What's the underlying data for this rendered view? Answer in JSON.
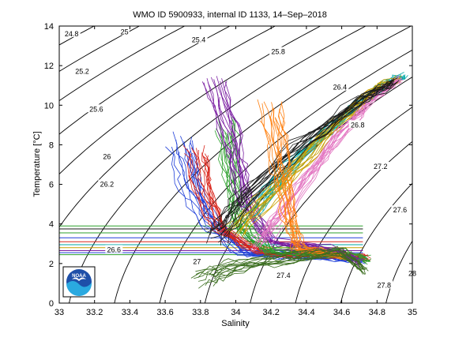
{
  "chart_data": {
    "type": "line",
    "title": "WMO ID 5900933, internal ID 1133, 14–Sep–2018",
    "xlabel": "Salinity",
    "ylabel": "Temperature [°C]",
    "xlim": [
      33,
      35
    ],
    "ylim": [
      0,
      14
    ],
    "x_ticks": [
      33,
      33.2,
      33.4,
      33.6,
      33.8,
      34,
      34.2,
      34.4,
      34.6,
      34.8,
      35
    ],
    "x_tick_labels": [
      "33",
      "33.2",
      "33.4",
      "33.6",
      "33.8",
      "34",
      "34.2",
      "34.4",
      "34.6",
      "34.8",
      "35"
    ],
    "y_ticks": [
      0,
      2,
      4,
      6,
      8,
      10,
      12,
      14
    ],
    "y_tick_labels": [
      "0",
      "2",
      "4",
      "6",
      "8",
      "10",
      "12",
      "14"
    ],
    "grid": false,
    "density_contours": {
      "levels": [
        24.8,
        25,
        25.2,
        25.4,
        25.6,
        25.8,
        26,
        26.2,
        26.4,
        26.6,
        26.8,
        27,
        27.2,
        27.4,
        27.6,
        27.8,
        28
      ],
      "labels": [
        {
          "text": "24.8",
          "s": 33.07,
          "t": 13.6
        },
        {
          "text": "25",
          "s": 33.37,
          "t": 13.7
        },
        {
          "text": "25.4",
          "s": 33.79,
          "t": 13.3
        },
        {
          "text": "25.8",
          "s": 34.24,
          "t": 12.7
        },
        {
          "text": "25.2",
          "s": 33.13,
          "t": 11.7
        },
        {
          "text": "26.4",
          "s": 34.59,
          "t": 10.9
        },
        {
          "text": "25.6",
          "s": 33.21,
          "t": 9.8
        },
        {
          "text": "26.8",
          "s": 34.69,
          "t": 9.0
        },
        {
          "text": "26",
          "s": 33.27,
          "t": 7.4
        },
        {
          "text": "27.2",
          "s": 34.82,
          "t": 6.9
        },
        {
          "text": "26.2",
          "s": 33.27,
          "t": 6.0
        },
        {
          "text": "27.6",
          "s": 34.93,
          "t": 4.7
        },
        {
          "text": "26.6",
          "s": 33.31,
          "t": 2.7
        },
        {
          "text": "27",
          "s": 33.78,
          "t": 2.1
        },
        {
          "text": "27.4",
          "s": 34.27,
          "t": 1.4
        },
        {
          "text": "28",
          "s": 35.0,
          "t": 1.5
        },
        {
          "text": "27.8",
          "s": 34.84,
          "t": 0.9
        }
      ]
    },
    "profile_families": [
      {
        "color": "#1f3fd9",
        "points": [
          [
            33.68,
            8.2
          ],
          [
            33.74,
            6.0
          ],
          [
            33.84,
            4.2
          ],
          [
            34.05,
            2.6
          ],
          [
            34.45,
            2.4
          ],
          [
            34.72,
            2.2
          ]
        ]
      },
      {
        "color": "#d9261c",
        "points": [
          [
            33.78,
            7.6
          ],
          [
            33.82,
            5.5
          ],
          [
            33.92,
            3.6
          ],
          [
            34.15,
            2.5
          ],
          [
            34.55,
            2.4
          ],
          [
            34.74,
            2.3
          ]
        ]
      },
      {
        "color": "#2ca02c",
        "points": [
          [
            33.95,
            9.0
          ],
          [
            33.98,
            6.5
          ],
          [
            34.02,
            4.0
          ],
          [
            34.18,
            2.7
          ],
          [
            34.6,
            2.5
          ],
          [
            34.75,
            2.2
          ]
        ]
      },
      {
        "color": "#7b1fa2",
        "points": [
          [
            33.88,
            11.0
          ],
          [
            33.98,
            8.0
          ],
          [
            34.05,
            5.0
          ],
          [
            34.2,
            3.0
          ],
          [
            34.58,
            2.6
          ],
          [
            34.7,
            2.0
          ]
        ]
      },
      {
        "color": "#00a6a6",
        "points": [
          [
            34.1,
            4.6
          ],
          [
            34.3,
            6.8
          ],
          [
            34.6,
            9.4
          ],
          [
            34.85,
            11.0
          ],
          [
            34.95,
            11.5
          ]
        ]
      },
      {
        "color": "#c9a000",
        "points": [
          [
            34.0,
            3.8
          ],
          [
            34.25,
            6.2
          ],
          [
            34.55,
            9.0
          ],
          [
            34.78,
            10.8
          ],
          [
            34.92,
            11.4
          ]
        ]
      },
      {
        "color": "#e377c2",
        "points": [
          [
            34.15,
            3.1
          ],
          [
            34.35,
            5.6
          ],
          [
            34.6,
            8.6
          ],
          [
            34.8,
            10.5
          ],
          [
            34.93,
            11.3
          ]
        ]
      },
      {
        "color": "#1a1a1a",
        "points": [
          [
            33.9,
            3.4
          ],
          [
            34.05,
            5.2
          ],
          [
            34.35,
            7.8
          ],
          [
            34.7,
            10.2
          ],
          [
            34.9,
            11.2
          ]
        ]
      },
      {
        "color": "#ff7f0e",
        "points": [
          [
            34.2,
            9.8
          ],
          [
            34.25,
            7.0
          ],
          [
            34.3,
            4.5
          ],
          [
            34.35,
            2.8
          ],
          [
            34.6,
            2.3
          ]
        ]
      },
      {
        "color": "#3b6e1f",
        "points": [
          [
            33.83,
            1.2
          ],
          [
            34.0,
            1.8
          ],
          [
            34.3,
            2.2
          ],
          [
            34.6,
            2.6
          ],
          [
            34.73,
            1.6
          ]
        ]
      }
    ],
    "horizontal_lines": [
      {
        "t": 2.45,
        "s_from": 33,
        "s_to": 34.72,
        "color": "#2ca02c"
      },
      {
        "t": 2.55,
        "s_from": 33,
        "s_to": 34.72,
        "color": "#1f3fd9"
      },
      {
        "t": 2.65,
        "s_from": 33,
        "s_to": 34.72,
        "color": "#7b1fa2"
      },
      {
        "t": 2.8,
        "s_from": 33,
        "s_to": 34.72,
        "color": "#c9a000"
      },
      {
        "t": 2.95,
        "s_from": 33,
        "s_to": 34.72,
        "color": "#00a6a6"
      },
      {
        "t": 3.1,
        "s_from": 33,
        "s_to": 34.72,
        "color": "#d9261c"
      },
      {
        "t": 3.3,
        "s_from": 33,
        "s_to": 34.72,
        "color": "#1f3fd9"
      },
      {
        "t": 3.55,
        "s_from": 33,
        "s_to": 34.72,
        "color": "#2ca02c"
      },
      {
        "t": 3.75,
        "s_from": 33,
        "s_to": 34.72,
        "color": "#1a1a1a"
      },
      {
        "t": 3.9,
        "s_from": 33,
        "s_to": 34.72,
        "color": "#2ca02c"
      }
    ]
  },
  "logo": {
    "text": "NOAA",
    "colors": {
      "sky": "#1e4fa8",
      "wave": "#2aa9e0",
      "gull": "#ffffff"
    }
  }
}
